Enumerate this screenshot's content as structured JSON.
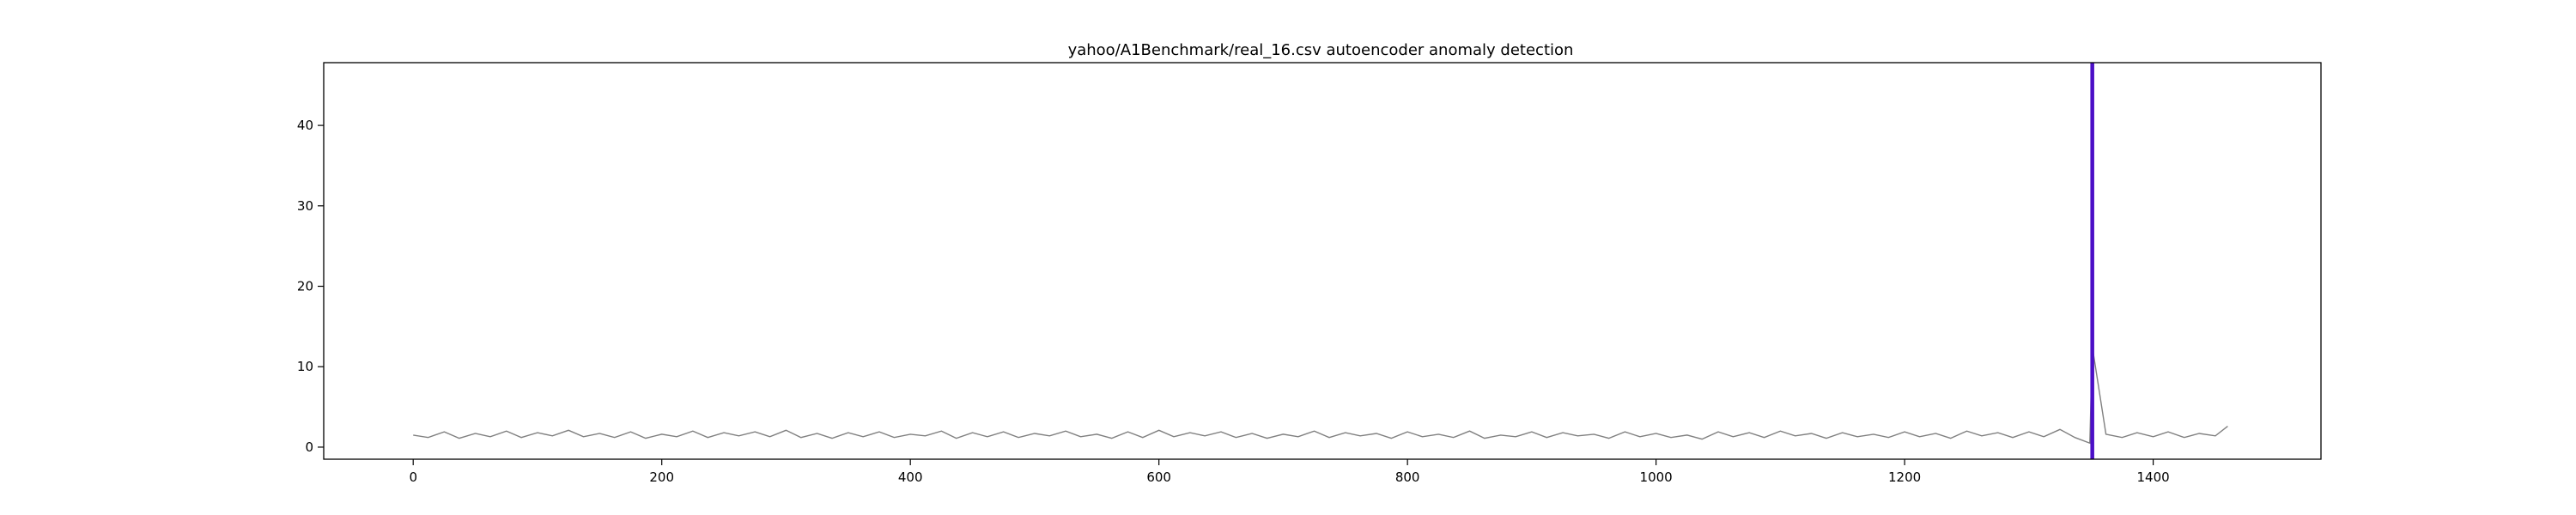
{
  "chart_data": {
    "type": "line",
    "title": "yahoo/A1Benchmark/real_16.csv autoencoder anomaly detection",
    "xlabel": "",
    "ylabel": "",
    "xlim": [
      -72,
      1535
    ],
    "ylim": [
      -1.5,
      47.8
    ],
    "x_ticks": [
      0,
      200,
      400,
      600,
      800,
      1000,
      1200,
      1400
    ],
    "y_ticks": [
      0,
      10,
      20,
      30,
      40
    ],
    "grid": false,
    "legend": "none",
    "series": [
      {
        "style": "line",
        "color": "#808080",
        "x": [
          0,
          12,
          25,
          37,
          50,
          62,
          75,
          87,
          100,
          112,
          125,
          137,
          150,
          162,
          175,
          187,
          200,
          212,
          225,
          237,
          250,
          262,
          275,
          287,
          300,
          312,
          325,
          337,
          350,
          362,
          375,
          387,
          400,
          412,
          425,
          437,
          450,
          462,
          475,
          487,
          500,
          512,
          525,
          537,
          550,
          562,
          575,
          587,
          600,
          612,
          625,
          637,
          650,
          662,
          675,
          687,
          700,
          712,
          725,
          737,
          750,
          762,
          775,
          787,
          800,
          812,
          825,
          837,
          850,
          862,
          875,
          887,
          900,
          912,
          925,
          937,
          950,
          962,
          975,
          987,
          1000,
          1012,
          1025,
          1037,
          1050,
          1062,
          1075,
          1087,
          1100,
          1112,
          1125,
          1137,
          1150,
          1162,
          1175,
          1187,
          1200,
          1212,
          1225,
          1237,
          1250,
          1262,
          1275,
          1287,
          1300,
          1312,
          1325,
          1337,
          1349,
          1351,
          1362,
          1375,
          1387,
          1400,
          1412,
          1425,
          1437,
          1450,
          1460
        ],
        "y": [
          1.5,
          1.2,
          1.9,
          1.1,
          1.7,
          1.3,
          2.0,
          1.2,
          1.8,
          1.4,
          2.1,
          1.3,
          1.7,
          1.2,
          1.9,
          1.1,
          1.6,
          1.3,
          2.0,
          1.2,
          1.8,
          1.4,
          1.9,
          1.3,
          2.1,
          1.2,
          1.7,
          1.1,
          1.8,
          1.3,
          1.9,
          1.2,
          1.6,
          1.4,
          2.0,
          1.1,
          1.8,
          1.3,
          1.9,
          1.2,
          1.7,
          1.4,
          2.0,
          1.3,
          1.6,
          1.1,
          1.9,
          1.2,
          2.1,
          1.3,
          1.8,
          1.4,
          1.9,
          1.2,
          1.7,
          1.1,
          1.6,
          1.3,
          2.0,
          1.2,
          1.8,
          1.4,
          1.7,
          1.1,
          1.9,
          1.3,
          1.6,
          1.2,
          2.0,
          1.1,
          1.5,
          1.3,
          1.9,
          1.2,
          1.8,
          1.4,
          1.6,
          1.1,
          1.9,
          1.3,
          1.7,
          1.2,
          1.5,
          1.0,
          1.9,
          1.3,
          1.8,
          1.2,
          2.0,
          1.4,
          1.7,
          1.1,
          1.8,
          1.3,
          1.6,
          1.2,
          1.9,
          1.3,
          1.7,
          1.1,
          2.0,
          1.4,
          1.8,
          1.2,
          1.9,
          1.3,
          2.2,
          1.2,
          0.5,
          12.5,
          1.6,
          1.2,
          1.8,
          1.3,
          1.9,
          1.2,
          1.7,
          1.4,
          2.6
        ]
      },
      {
        "style": "vline",
        "color": "#4b0fc7",
        "x": [
          1351
        ]
      }
    ]
  }
}
